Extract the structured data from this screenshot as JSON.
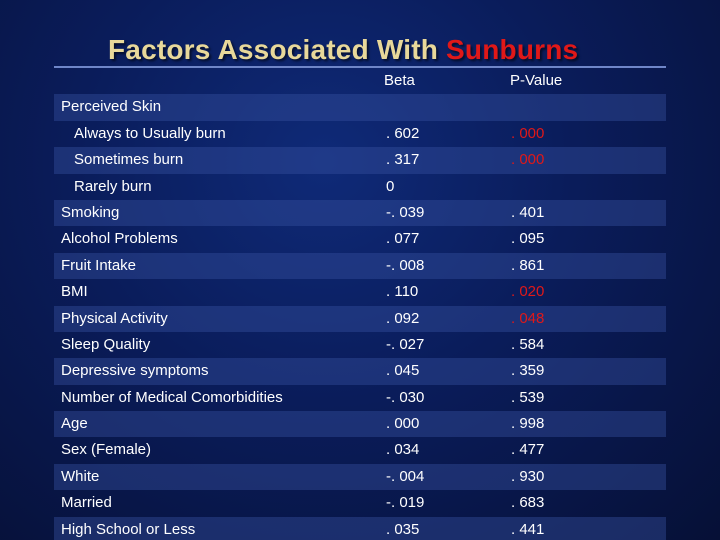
{
  "title": {
    "main": "Factors Associated With",
    "accent": "Sunburns"
  },
  "columns": {
    "beta": "Beta",
    "p_value": "P-Value"
  },
  "section_label": "Perceived Skin",
  "rows": [
    {
      "label": "Always to Usually burn",
      "beta": ". 602",
      "p": ". 000",
      "significant": true,
      "indent": true
    },
    {
      "label": "Sometimes burn",
      "beta": ". 317",
      "p": ". 000",
      "significant": true,
      "indent": true
    },
    {
      "label": "Rarely burn",
      "beta": "0",
      "p": "",
      "significant": false,
      "indent": true
    },
    {
      "label": "Smoking",
      "beta": "-. 039",
      "p": ". 401",
      "significant": false,
      "indent": false
    },
    {
      "label": "Alcohol Problems",
      "beta": ". 077",
      "p": ". 095",
      "significant": false,
      "indent": false
    },
    {
      "label": "Fruit Intake",
      "beta": "-. 008",
      "p": ". 861",
      "significant": false,
      "indent": false
    },
    {
      "label": "BMI",
      "beta": ". 110",
      "p": ". 020",
      "significant": true,
      "indent": false
    },
    {
      "label": "Physical Activity",
      "beta": ". 092",
      "p": ". 048",
      "significant": true,
      "indent": false
    },
    {
      "label": "Sleep Quality",
      "beta": "-. 027",
      "p": ". 584",
      "significant": false,
      "indent": false
    },
    {
      "label": "Depressive symptoms",
      "beta": ". 045",
      "p": ". 359",
      "significant": false,
      "indent": false
    },
    {
      "label": "Number of Medical Comorbidities",
      "beta": "-. 030",
      "p": ". 539",
      "significant": false,
      "indent": false
    },
    {
      "label": "Age",
      "beta": ". 000",
      "p": ". 998",
      "significant": false,
      "indent": false
    },
    {
      "label": "Sex (Female)",
      "beta": ". 034",
      "p": ". 477",
      "significant": false,
      "indent": false
    },
    {
      "label": "White",
      "beta": "-. 004",
      "p": ". 930",
      "significant": false,
      "indent": false
    },
    {
      "label": "Married",
      "beta": "-. 019",
      "p": ". 683",
      "significant": false,
      "indent": false
    },
    {
      "label": "High School or Less",
      "beta": ". 035",
      "p": ". 441",
      "significant": false,
      "indent": false
    }
  ],
  "colors": {
    "title": "#e8d89a",
    "accent": "#e01818",
    "significant": "#e01818",
    "text": "#ffffff",
    "band": "#2a4596",
    "background": "#0a1c5a"
  }
}
